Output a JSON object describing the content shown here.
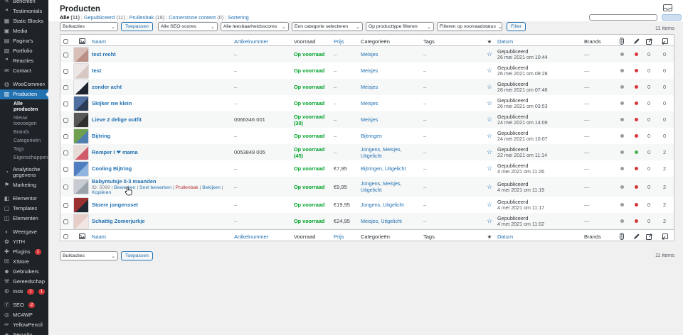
{
  "colors": {
    "accent": "#2271b1",
    "sidebar_bg": "#1d2327",
    "in_stock_green": "#00a32a",
    "badge_red": "#d63638",
    "seo_dot_grey": "#9b9b9b",
    "readability_dot_red": "#d63638",
    "readability_dot_green": "#46b450"
  },
  "icon_glyphs": {
    "pin-icon": "✎",
    "testimonial-icon": "❝",
    "blocks-icon": "▦",
    "media-icon": "▣",
    "pages-icon": "▤",
    "portfolio-icon": "▧",
    "comments-icon": "❞",
    "contact-icon": "✉",
    "woocommerce-icon": "◍",
    "products-icon": "▥",
    "analytics-icon": "◔",
    "marketing-icon": "⚑",
    "elementor-icon": "◧",
    "templates-icon": "▢",
    "elements-icon": "◫",
    "appearance-icon": "◐",
    "yith-icon": "✿",
    "plugins-icon": "✚",
    "xstore-icon": "☒",
    "users-icon": "☻",
    "tools-icon": "⚒",
    "settings-icon": "⚙",
    "seo-icon": "Ⓨ",
    "mc4wp-icon": "◎",
    "yellowpencil-icon": "✏",
    "security-icon": "◈",
    "chevron": "⌄",
    "star-filled": "★",
    "star-outline": "☆"
  },
  "sidebar": {
    "groups": [
      {
        "items": [
          {
            "label": "Berichten",
            "icon": "pin-icon",
            "partial": true
          },
          {
            "label": "Testimonials",
            "icon": "testimonial-icon"
          },
          {
            "label": "Static Blocks",
            "icon": "blocks-icon"
          },
          {
            "label": "Media",
            "icon": "media-icon"
          },
          {
            "label": "Pagina's",
            "icon": "pages-icon"
          },
          {
            "label": "Portfolio",
            "icon": "portfolio-icon"
          },
          {
            "label": "Reacties",
            "icon": "comments-icon"
          },
          {
            "label": "Contact",
            "icon": "contact-icon"
          }
        ]
      },
      {
        "items": [
          {
            "label": "WooCommerce",
            "icon": "woocommerce-icon"
          },
          {
            "label": "Producten",
            "icon": "products-icon",
            "active": true,
            "submenu": [
              {
                "label": "Alle producten",
                "current": true
              },
              {
                "label": "Nieuw toevoegen"
              },
              {
                "label": "Brands"
              },
              {
                "label": "Categorieën"
              },
              {
                "label": "Tags"
              },
              {
                "label": "Eigenschappen"
              }
            ]
          },
          {
            "label": "Analytische gegevens",
            "icon": "analytics-icon",
            "twoline": true
          },
          {
            "label": "Marketing",
            "icon": "marketing-icon"
          }
        ]
      },
      {
        "items": [
          {
            "label": "Elementor",
            "icon": "elementor-icon"
          },
          {
            "label": "Templates",
            "icon": "templates-icon"
          },
          {
            "label": "Elementen",
            "icon": "elements-icon"
          }
        ]
      },
      {
        "items": [
          {
            "label": "Weergave",
            "icon": "appearance-icon"
          },
          {
            "label": "YITH",
            "icon": "yith-icon"
          },
          {
            "label": "Plugins",
            "icon": "plugins-icon",
            "badges": [
              "1"
            ]
          },
          {
            "label": "XStore",
            "icon": "xstore-icon"
          },
          {
            "label": "Gebruikers",
            "icon": "users-icon"
          },
          {
            "label": "Gereedschap",
            "icon": "tools-icon"
          },
          {
            "label": "Instellingen",
            "icon": "settings-icon",
            "badges": [
              "1",
              "1"
            ]
          }
        ]
      },
      {
        "items": [
          {
            "label": "SEO",
            "icon": "seo-icon",
            "badges": [
              "2"
            ]
          },
          {
            "label": "MC4WP",
            "icon": "mc4wp-icon"
          },
          {
            "label": "YellowPencil",
            "icon": "yellowpencil-icon"
          },
          {
            "label": "Security",
            "icon": "security-icon"
          }
        ]
      }
    ]
  },
  "header": {
    "title": "Producten",
    "inbox_label": "Inbox"
  },
  "subsets": [
    {
      "label": "Alle",
      "count": "(11)",
      "current": true
    },
    {
      "label": "Gepubliceerd",
      "count": "(11)"
    },
    {
      "label": "Prullenbak",
      "count": "(18)"
    },
    {
      "label": "Cornerstone content",
      "count": "(0)"
    },
    {
      "label": "Sortering",
      "count": ""
    }
  ],
  "toolbar": {
    "bulk_actions": "Bulkacties",
    "apply": "Toepassen",
    "seo_scores": "Alle SEO-scores",
    "readability": "Alle leesbaarheidsscores",
    "category": "Een categorie selecteren",
    "product_type": "Op producttype filteren",
    "stock_status": "Filteren op voorraadstatus",
    "filter": "Filter",
    "items_count": "11 items"
  },
  "table": {
    "headers": {
      "name": "Naam",
      "sku": "Artikelnummer",
      "stock": "Voorraad",
      "price": "Prijs",
      "categories": "Categorieën",
      "tags": "Tags",
      "date": "Datum",
      "brands": "Brands"
    },
    "rows": [
      {
        "name": "test recht",
        "sku": "–",
        "stock": "Op voorraad",
        "qty": "",
        "price": "–",
        "categories": "Meisjes",
        "tags": "–",
        "status": "Gepubliceerd",
        "date": "26 mei 2021 om 10:44",
        "brands": "—",
        "seo_dot": "grey",
        "read_dot": "red",
        "links_in": "0",
        "links_out": "0",
        "thumb": [
          "#d8c0b8",
          "#b98f86"
        ]
      },
      {
        "name": "test",
        "sku": "–",
        "stock": "Op voorraad",
        "qty": "",
        "price": "–",
        "categories": "Meisjes",
        "tags": "–",
        "status": "Gepubliceerd",
        "date": "26 mei 2021 om 09:28",
        "brands": "—",
        "seo_dot": "grey",
        "read_dot": "red",
        "links_in": "0",
        "links_out": "0",
        "thumb": [
          "#ece7e4",
          "#d8c8c4"
        ]
      },
      {
        "name": "zonder acht",
        "sku": "–",
        "stock": "Op voorraad",
        "qty": "",
        "price": "–",
        "categories": "Meisjes",
        "tags": "–",
        "status": "Gepubliceerd",
        "date": "26 mei 2021 om 07:46",
        "brands": "—",
        "seo_dot": "grey",
        "read_dot": "red",
        "links_in": "0",
        "links_out": "0",
        "thumb": [
          "#f2f2f2",
          "#1e2430"
        ]
      },
      {
        "name": "Skijker nw klein",
        "sku": "–",
        "stock": "Op voorraad",
        "qty": "",
        "price": "–",
        "categories": "Meisjes",
        "tags": "–",
        "status": "Gepubliceerd",
        "date": "26 mei 2021 om 03:53",
        "brands": "—",
        "seo_dot": "grey",
        "read_dot": "red",
        "links_in": "0",
        "links_out": "0",
        "thumb": [
          "#4f6fa0",
          "#2b3a55"
        ]
      },
      {
        "name": "Lieve 2 delige outfit",
        "sku": "0066346 001",
        "stock": "Op voorraad",
        "qty": "(30)",
        "price": "–",
        "categories": "Meisjes",
        "tags": "–",
        "status": "Gepubliceerd",
        "date": "24 mei 2021 om 14:09",
        "brands": "—",
        "seo_dot": "grey",
        "read_dot": "red",
        "links_in": "0",
        "links_out": "0",
        "thumb": [
          "#585858",
          "#2e2e2e"
        ]
      },
      {
        "name": "Bijtring",
        "sku": "–",
        "stock": "Op voorraad",
        "qty": "",
        "price": "–",
        "categories": "Bijtringen",
        "tags": "–",
        "status": "Gepubliceerd",
        "date": "24 mei 2021 om 10:07",
        "brands": "—",
        "seo_dot": "grey",
        "read_dot": "red",
        "links_in": "0",
        "links_out": "0",
        "thumb": [
          "#6fa04f",
          "#4f7fb0"
        ]
      },
      {
        "name": "Romper I ❤ mama",
        "sku": "0053849 005",
        "stock": "Op voorraad",
        "qty": "(45)",
        "price": "–",
        "categories": "Jongens, Meisjes, Uitgelicht",
        "tags": "–",
        "status": "Gepubliceerd",
        "date": "22 mei 2021 om 11:14",
        "brands": "—",
        "seo_dot": "grey",
        "read_dot": "green",
        "links_in": "0",
        "links_out": "2",
        "thumb": [
          "#e8dcd6",
          "#d05a6a"
        ]
      },
      {
        "name": "Cooling Bijtring",
        "sku": "–",
        "stock": "Op voorraad",
        "qty": "",
        "price": "€7,95",
        "categories": "Bijtringen, Uitgelicht",
        "tags": "–",
        "status": "Gepubliceerd",
        "date": "4 mei 2021 om 11:26",
        "brands": "—",
        "seo_dot": "grey",
        "read_dot": "red",
        "links_in": "0",
        "links_out": "2",
        "thumb": [
          "#4f7fc0",
          "#8fb4e0"
        ]
      },
      {
        "name": "Babymutsje 0-3 maanden",
        "sku": "–",
        "stock": "Op voorraad",
        "qty": "",
        "price": "€9,95",
        "categories": "Jongens, Meisjes, Uitgelicht",
        "tags": "–",
        "status": "Gepubliceerd",
        "date": "4 mei 2021 om 11:19",
        "brands": "—",
        "seo_dot": "grey",
        "read_dot": "red",
        "links_in": "0",
        "links_out": "2",
        "thumb": [
          "#c8ccd2",
          "#9aa2ac"
        ],
        "actions": {
          "id": "ID: 5099",
          "links": [
            {
              "label": "Bewerken"
            },
            {
              "label": "Snel bewerken"
            },
            {
              "label": "Prullenbak",
              "danger": true
            },
            {
              "label": "Bekijken"
            },
            {
              "label": "Kopiëren"
            }
          ]
        }
      },
      {
        "name": "Stoere jongensset",
        "sku": "–",
        "stock": "Op voorraad",
        "qty": "",
        "price": "€19,95",
        "categories": "Jongens, Uitgelicht",
        "tags": "–",
        "status": "Gepubliceerd",
        "date": "4 mei 2021 om 11:17",
        "brands": "—",
        "seo_dot": "grey",
        "read_dot": "red",
        "links_in": "0",
        "links_out": "2",
        "thumb": [
          "#9a3030",
          "#222831"
        ]
      },
      {
        "name": "Schattig Zomerjurkje",
        "sku": "–",
        "stock": "Op voorraad",
        "qty": "",
        "price": "€24,95",
        "categories": "Meisjes, Uitgelicht",
        "tags": "–",
        "status": "Gepubliceerd",
        "date": "4 mei 2021 om 11:02",
        "brands": "—",
        "seo_dot": "grey",
        "read_dot": "red",
        "links_in": "0",
        "links_out": "2",
        "thumb": [
          "#e6cdc8",
          "#f2e7e3"
        ]
      }
    ]
  }
}
